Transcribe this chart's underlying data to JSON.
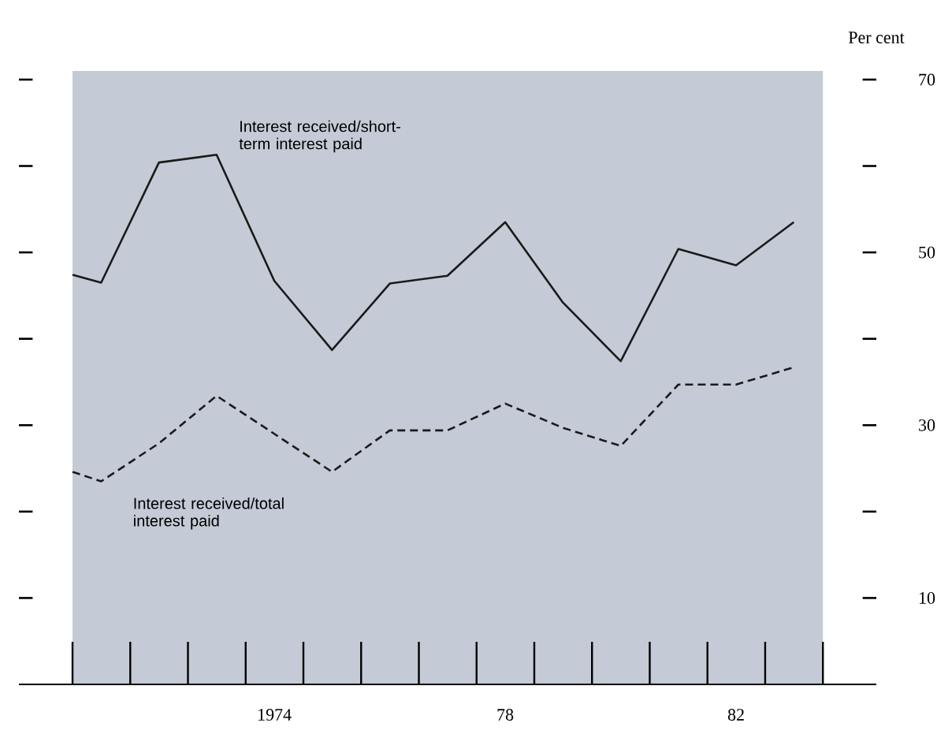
{
  "chart_data": {
    "type": "line",
    "ylabel": "Per cent",
    "x": [
      "1971",
      "1971-07",
      "1972-07",
      "1973-07",
      "1974-07",
      "1975-07",
      "1976-07",
      "1977-07",
      "1978-07",
      "1979-07",
      "1980-07",
      "1981-07",
      "1982-07",
      "1983-07"
    ],
    "series": [
      {
        "name": "Interest received/short-term interest paid",
        "color": "#1a1a1a",
        "line_style": "solid",
        "values": [
          47.4,
          46.5,
          60.4,
          61.3,
          46.7,
          38.7,
          46.4,
          47.3,
          53.5,
          44.2,
          37.4,
          50.4,
          48.5,
          53.5
        ]
      },
      {
        "name": "Interest received/total interest paid",
        "color": "#1a1a1a",
        "line_style": "dashed",
        "values": [
          24.6,
          23.5,
          27.9,
          33.4,
          29.0,
          24.6,
          29.4,
          29.4,
          32.5,
          29.7,
          27.6,
          34.7,
          34.7,
          36.7
        ]
      }
    ],
    "xlim": [
      "1970-01-27",
      "1984-12-05"
    ],
    "xticks": [
      {
        "value": "1974-07",
        "label": "1974"
      },
      {
        "value": "1978-07",
        "label": "78"
      },
      {
        "value": "1982-07",
        "label": "82"
      }
    ],
    "ylim": [
      0,
      71
    ],
    "yticks": [
      10,
      {
        "value": 20,
        "label": null
      },
      30,
      {
        "value": 40,
        "label": null
      },
      50,
      {
        "value": 60,
        "label": null
      },
      70
    ],
    "bands": [
      {
        "axis": "x",
        "from": "1971",
        "to": "1984",
        "color": "#c4cbd6"
      }
    ]
  }
}
